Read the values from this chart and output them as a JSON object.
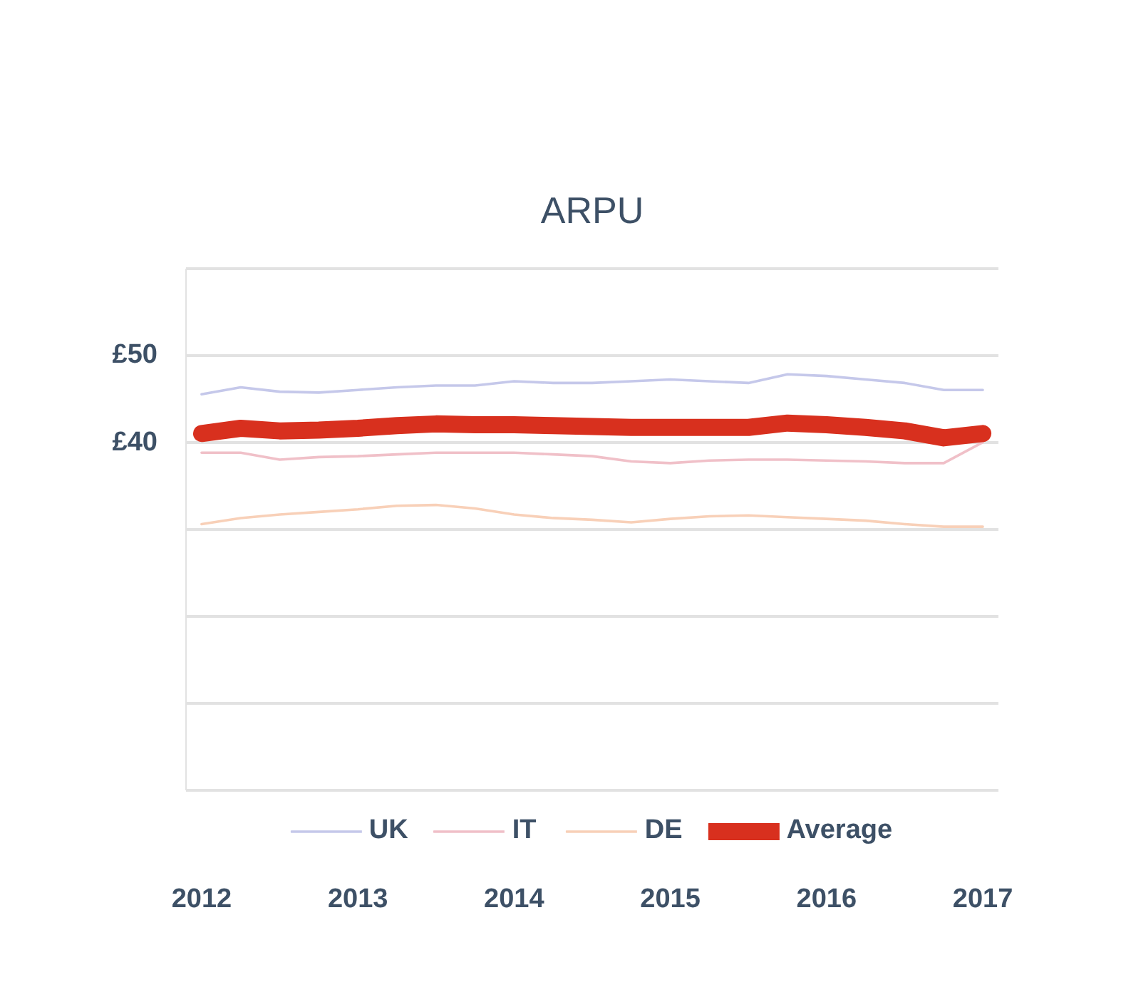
{
  "chart_data": {
    "type": "line",
    "title": "ARPU",
    "x": [
      2012,
      2012.25,
      2012.5,
      2012.75,
      2013,
      2013.25,
      2013.5,
      2013.75,
      2014,
      2014.25,
      2014.5,
      2014.75,
      2015,
      2015.25,
      2015.5,
      2015.75,
      2016,
      2016.25,
      2016.5,
      2016.75,
      2017
    ],
    "series": [
      {
        "name": "UK",
        "color": "#c5c8ea",
        "values": [
          45.5,
          46.3,
          45.8,
          45.7,
          46.0,
          46.3,
          46.5,
          46.5,
          47.0,
          46.8,
          46.8,
          47.0,
          47.2,
          47.0,
          46.8,
          47.8,
          47.6,
          47.2,
          46.8,
          46.0,
          46.0
        ]
      },
      {
        "name": "IT",
        "color": "#f0c0c8",
        "values": [
          38.8,
          38.8,
          38.0,
          38.3,
          38.4,
          38.6,
          38.8,
          38.8,
          38.8,
          38.6,
          38.4,
          37.8,
          37.6,
          37.9,
          38.0,
          38.0,
          37.9,
          37.8,
          37.6,
          37.6,
          40.0
        ]
      },
      {
        "name": "DE",
        "color": "#f8d0b8",
        "values": [
          30.6,
          31.3,
          31.7,
          32.0,
          32.3,
          32.7,
          32.8,
          32.4,
          31.7,
          31.3,
          31.1,
          30.8,
          31.2,
          31.5,
          31.6,
          31.4,
          31.2,
          31.0,
          30.6,
          30.3,
          30.3
        ]
      },
      {
        "name": "Average",
        "color": "#d8301e",
        "values": [
          41.0,
          41.6,
          41.3,
          41.4,
          41.6,
          41.9,
          42.1,
          42.0,
          42.0,
          41.9,
          41.8,
          41.7,
          41.7,
          41.7,
          41.7,
          42.2,
          42.0,
          41.7,
          41.3,
          40.5,
          41.0
        ]
      }
    ],
    "xlim": [
      2011.9,
      2017.1
    ],
    "xticks": [
      2012,
      2013,
      2014,
      2015,
      2016,
      2017
    ],
    "ylim": [
      0,
      60
    ],
    "yticks": [
      {
        "value": 0,
        "label": null
      },
      {
        "value": 10,
        "label": null
      },
      {
        "value": 20,
        "label": null
      },
      {
        "value": 30,
        "label": null
      },
      {
        "value": 40,
        "label": "£40"
      },
      {
        "value": 50,
        "label": "£50"
      },
      {
        "value": 60,
        "label": null
      }
    ],
    "grid": "y",
    "legend": "bottom",
    "marker": "none",
    "line_style": "solid"
  }
}
